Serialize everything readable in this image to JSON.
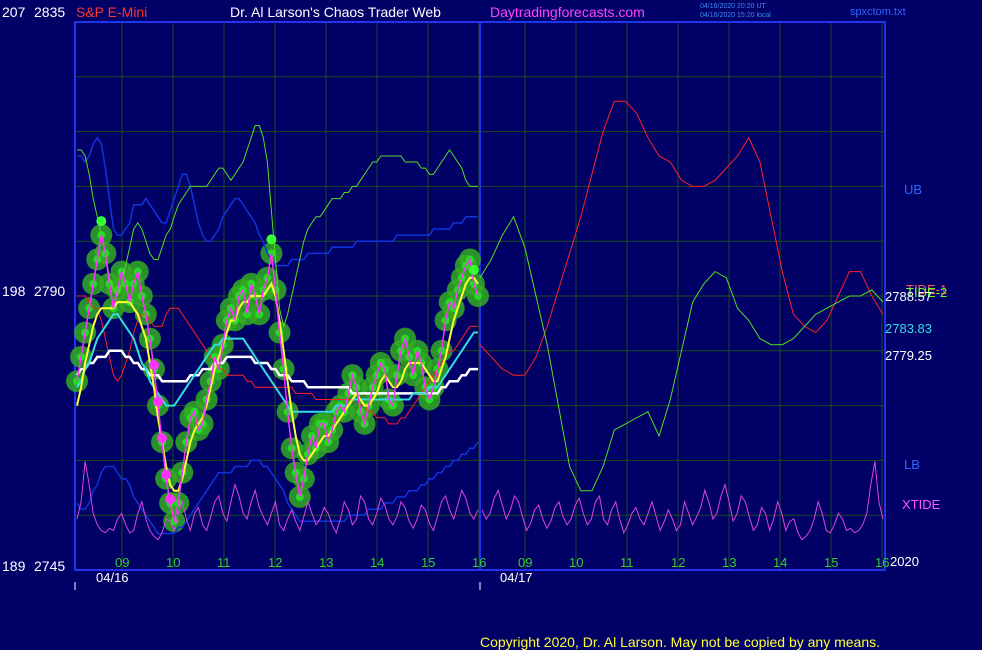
{
  "header": {
    "market": "S&P E-Mini",
    "title": "Dr. Al Larson's Chaos Trader Web",
    "site": "Daytradingforecasts.com",
    "stamp_utc": "04/16/2020 20:20 UT",
    "stamp_local": "04/16/2020 15:20 local",
    "file": "spxctom.txt",
    "footer": "Copyright 2020, Dr. Al Larson. May not be copied by any means."
  },
  "colors": {
    "background": "#000066",
    "frame": "#2233ee",
    "grid": "#1f4a1f",
    "price": "#ff33ff",
    "envelope": "#66ff33",
    "fast_ma": "#ffff33",
    "mid_ma": "#33dddd",
    "slow_ma": "#ffffff",
    "bands": "#1133dd",
    "tide2": "#ff2222",
    "tide1": "#55dd22",
    "xtide": "#dd44dd",
    "legend_ub": "#3366ff",
    "legend_tide": "#ff5555",
    "legend_xtide": "#ff55ff",
    "market_label": "#ff3333",
    "site_label": "#ff44ff"
  },
  "chart_data": {
    "type": "line",
    "y_axis": {
      "range": [
        2745,
        2835
      ],
      "ticks": [
        {
          "left": "207",
          "right": "2835",
          "value": 2835
        },
        {
          "left": "198",
          "right": "2790",
          "value": 2790
        },
        {
          "left": "189",
          "right": "2745",
          "value": 2745
        }
      ]
    },
    "x_axis": {
      "hour_ticks": [
        "09",
        "10",
        "11",
        "12",
        "13",
        "14",
        "15",
        "16",
        "09",
        "10",
        "11",
        "12",
        "13",
        "14",
        "15",
        "16"
      ],
      "date_labels": [
        "04/16",
        "04/17"
      ],
      "last_label": "2020",
      "grid": true
    },
    "price_labels": {
      "ma1": "2788.57",
      "ma2": "2783.83",
      "ma3": "2779.25"
    },
    "legend": {
      "ub": "UB",
      "tide2": "TIDE-2",
      "tide1": "TIDE-1",
      "lb": "LB",
      "xtide": "XTIDE"
    },
    "series": {
      "price": [
        2776,
        2780,
        2784,
        2788,
        2792,
        2796,
        2800,
        2797,
        2792,
        2788,
        2791,
        2794,
        2792,
        2789,
        2792,
        2794,
        2790,
        2787,
        2783,
        2778,
        2772,
        2766,
        2760,
        2756,
        2753,
        2756,
        2761,
        2766,
        2770,
        2771,
        2768,
        2769,
        2773,
        2776,
        2780,
        2778,
        2782,
        2786,
        2788,
        2786,
        2790,
        2791,
        2787,
        2792,
        2790,
        2787,
        2791,
        2793,
        2797,
        2791,
        2784,
        2778,
        2771,
        2765,
        2761,
        2757,
        2760,
        2764,
        2767,
        2765,
        2769,
        2769,
        2766,
        2768,
        2771,
        2772,
        2771,
        2774,
        2777,
        2775,
        2771,
        2769,
        2772,
        2775,
        2777,
        2779,
        2778,
        2773,
        2772,
        2777,
        2781,
        2783,
        2780,
        2777,
        2781,
        2779,
        2775,
        2773,
        2775,
        2778,
        2781,
        2786,
        2789,
        2788,
        2791,
        2793,
        2795,
        2796,
        2792,
        2790
      ],
      "fast_ma": [
        2772,
        2775,
        2779,
        2782,
        2785,
        2787,
        2788,
        2788,
        2788,
        2788,
        2789,
        2789,
        2789,
        2789,
        2788,
        2787,
        2785,
        2783,
        2779,
        2775,
        2770,
        2766,
        2762,
        2759,
        2758,
        2758,
        2760,
        2763,
        2766,
        2768,
        2769,
        2770,
        2772,
        2775,
        2778,
        2780,
        2782,
        2784,
        2786,
        2786,
        2788,
        2789,
        2789,
        2790,
        2790,
        2790,
        2790,
        2791,
        2792,
        2790,
        2786,
        2781,
        2776,
        2771,
        2767,
        2764,
        2763,
        2763,
        2764,
        2765,
        2766,
        2767,
        2767,
        2768,
        2769,
        2770,
        2771,
        2772,
        2773,
        2774,
        2773,
        2772,
        2772,
        2773,
        2774,
        2776,
        2777,
        2776,
        2775,
        2775,
        2776,
        2778,
        2779,
        2779,
        2779,
        2779,
        2778,
        2777,
        2776,
        2776,
        2778,
        2780,
        2783,
        2786,
        2788,
        2790,
        2792,
        2793,
        2793,
        2792
      ],
      "mid_ma": [
        2775,
        2776,
        2778,
        2779,
        2781,
        2783,
        2784,
        2785,
        2786,
        2787,
        2787,
        2786,
        2785,
        2784,
        2783,
        2781,
        2779,
        2778,
        2776,
        2775,
        2774,
        2773,
        2772,
        2772,
        2772,
        2773,
        2774,
        2775,
        2776,
        2777,
        2778,
        2779,
        2780,
        2781,
        2782,
        2782,
        2783,
        2783,
        2783,
        2783,
        2783,
        2783,
        2782,
        2781,
        2780,
        2779,
        2778,
        2777,
        2776,
        2775,
        2774,
        2773,
        2772,
        2771,
        2771,
        2771,
        2771,
        2771,
        2771,
        2771,
        2771,
        2771,
        2771,
        2771,
        2772,
        2772,
        2772,
        2772,
        2773,
        2773,
        2773,
        2773,
        2773,
        2773,
        2773,
        2773,
        2773,
        2773,
        2773,
        2773,
        2773,
        2773,
        2773,
        2774,
        2774,
        2774,
        2774,
        2775,
        2775,
        2775,
        2776,
        2777,
        2778,
        2779,
        2780,
        2781,
        2782,
        2783,
        2784,
        2784
      ],
      "slow_ma": [
        2777,
        2778,
        2778,
        2779,
        2779,
        2780,
        2780,
        2780,
        2781,
        2781,
        2781,
        2781,
        2780,
        2780,
        2779,
        2779,
        2778,
        2778,
        2777,
        2777,
        2777,
        2776,
        2776,
        2776,
        2776,
        2776,
        2776,
        2776,
        2777,
        2777,
        2777,
        2778,
        2778,
        2778,
        2779,
        2779,
        2779,
        2780,
        2780,
        2780,
        2780,
        2780,
        2780,
        2780,
        2779,
        2779,
        2779,
        2779,
        2778,
        2778,
        2777,
        2777,
        2777,
        2776,
        2776,
        2776,
        2776,
        2775,
        2775,
        2775,
        2775,
        2775,
        2775,
        2775,
        2775,
        2775,
        2775,
        2775,
        2774,
        2774,
        2774,
        2774,
        2774,
        2774,
        2774,
        2774,
        2774,
        2774,
        2774,
        2774,
        2774,
        2774,
        2774,
        2774,
        2774,
        2774,
        2774,
        2774,
        2774,
        2774,
        2775,
        2775,
        2776,
        2776,
        2776,
        2777,
        2777,
        2778,
        2778,
        2778
      ],
      "upper_band": [
        2813,
        2813,
        2812,
        2813,
        2815,
        2816,
        2815,
        2811,
        2806,
        2801,
        2800,
        2800,
        2801,
        2802,
        2805,
        2805,
        2805,
        2806,
        2805,
        2804,
        2803,
        2802,
        2802,
        2804,
        2806,
        2808,
        2810,
        2810,
        2808,
        2805,
        2802,
        2800,
        2799,
        2799,
        2800,
        2801,
        2803,
        2804,
        2805,
        2806,
        2806,
        2805,
        2804,
        2803,
        2802,
        2800,
        2799,
        2797,
        2796,
        2795,
        2795,
        2795,
        2795,
        2796,
        2796,
        2796,
        2796,
        2797,
        2797,
        2797,
        2797,
        2797,
        2797,
        2798,
        2798,
        2798,
        2798,
        2798,
        2798,
        2799,
        2799,
        2799,
        2799,
        2799,
        2799,
        2799,
        2799,
        2799,
        2799,
        2800,
        2800,
        2800,
        2800,
        2800,
        2800,
        2800,
        2800,
        2800,
        2801,
        2801,
        2801,
        2801,
        2801,
        2802,
        2802,
        2802,
        2803,
        2803,
        2803,
        2803
      ],
      "lower_band": [
        2756,
        2755,
        2755,
        2756,
        2758,
        2759,
        2761,
        2762,
        2762,
        2762,
        2761,
        2760,
        2760,
        2759,
        2757,
        2756,
        2755,
        2754,
        2753,
        2752,
        2751,
        2751,
        2751,
        2751,
        2751,
        2752,
        2752,
        2753,
        2754,
        2755,
        2756,
        2757,
        2758,
        2759,
        2760,
        2761,
        2761,
        2761,
        2761,
        2762,
        2762,
        2762,
        2762,
        2763,
        2763,
        2763,
        2762,
        2762,
        2761,
        2760,
        2759,
        2758,
        2756,
        2755,
        2754,
        2753,
        2753,
        2753,
        2753,
        2753,
        2753,
        2753,
        2753,
        2753,
        2753,
        2753,
        2753,
        2754,
        2754,
        2754,
        2754,
        2754,
        2755,
        2755,
        2755,
        2755,
        2756,
        2756,
        2756,
        2757,
        2757,
        2757,
        2758,
        2758,
        2758,
        2759,
        2759,
        2760,
        2760,
        2761,
        2761,
        2762,
        2762,
        2763,
        2763,
        2764,
        2764,
        2765,
        2765,
        2766
      ],
      "tide1": [
        2814,
        2814,
        2813,
        2810,
        2806,
        2803,
        2800,
        2797,
        2793,
        2791,
        2790,
        2792,
        2795,
        2798,
        2801,
        2802,
        2801,
        2799,
        2797,
        2796,
        2796,
        2798,
        2800,
        2801,
        2803,
        2805,
        2806,
        2807,
        2808,
        2808,
        2808,
        2808,
        2808,
        2809,
        2810,
        2811,
        2811,
        2810,
        2809,
        2810,
        2811,
        2812,
        2814,
        2816,
        2818,
        2818,
        2816,
        2812,
        2804,
        2796,
        2788,
        2785,
        2787,
        2790,
        2793,
        2796,
        2799,
        2801,
        2802,
        2803,
        2803,
        2804,
        2805,
        2806,
        2806,
        2806,
        2807,
        2807,
        2808,
        2808,
        2809,
        2810,
        2811,
        2812,
        2812,
        2813,
        2813,
        2813,
        2813,
        2813,
        2813,
        2812,
        2812,
        2812,
        2812,
        2811,
        2811,
        2810,
        2810,
        2811,
        2812,
        2813,
        2814,
        2813,
        2812,
        2811,
        2809,
        2808,
        2808,
        2808
      ],
      "tide2": [
        2790,
        2790,
        2790,
        2789,
        2788,
        2788,
        2786,
        2783,
        2780,
        2777,
        2776,
        2777,
        2779,
        2781,
        2784,
        2786,
        2787,
        2787,
        2786,
        2785,
        2785,
        2785,
        2787,
        2788,
        2788,
        2788,
        2787,
        2786,
        2785,
        2784,
        2783,
        2782,
        2781,
        2780,
        2779,
        2778,
        2778,
        2777,
        2777,
        2777,
        2777,
        2777,
        2776,
        2776,
        2775,
        2775,
        2775,
        2775,
        2775,
        2775,
        2775,
        2775,
        2775,
        2775,
        2774,
        2774,
        2774,
        2774,
        2774,
        2773,
        2773,
        2773,
        2773,
        2773,
        2773,
        2773,
        2773,
        2773,
        2773,
        2773,
        2772,
        2772,
        2771,
        2771,
        2770,
        2770,
        2770,
        2769,
        2769,
        2769,
        2770,
        2770,
        2771,
        2772,
        2773,
        2774,
        2775,
        2776,
        2777,
        2778,
        2779,
        2780,
        2781,
        2781,
        2782,
        2783,
        2784,
        2785,
        2785,
        2785
      ],
      "tide2_forecast": [
        2782,
        2780,
        2778,
        2777,
        2777,
        2780,
        2785,
        2791,
        2797,
        2803,
        2810,
        2817,
        2822,
        2822,
        2820,
        2816,
        2813,
        2812,
        2809,
        2808,
        2808,
        2809,
        2811,
        2813,
        2816,
        2812,
        2803,
        2794,
        2787,
        2785,
        2784,
        2786,
        2790,
        2794,
        2794,
        2790,
        2787
      ],
      "tide1_forecast": [
        2793,
        2796,
        2800,
        2803,
        2798,
        2790,
        2782,
        2772,
        2762,
        2758,
        2758,
        2762,
        2768,
        2769,
        2770,
        2771,
        2767,
        2773,
        2781,
        2789,
        2792,
        2794,
        2793,
        2788,
        2786,
        2783,
        2782,
        2782,
        2783,
        2785,
        2787,
        2788,
        2789,
        2790,
        2790,
        2791,
        2789
      ],
      "xtide": [
        40,
        55,
        90,
        70,
        45,
        35,
        30,
        28,
        32,
        30,
        40,
        45,
        35,
        28,
        30,
        45,
        55,
        40,
        30,
        25,
        22,
        28,
        40,
        38,
        30,
        45,
        55,
        40,
        30,
        45,
        50,
        35,
        30,
        42,
        55,
        60,
        45,
        38,
        55,
        70,
        60,
        45,
        40,
        55,
        65,
        50,
        42,
        35,
        45,
        55,
        35,
        30,
        40,
        48,
        38,
        30,
        42,
        55,
        45,
        35,
        40,
        50,
        45,
        35,
        28,
        40,
        55,
        48,
        35,
        40,
        60,
        55,
        40,
        35,
        45,
        58,
        52,
        40,
        35,
        42,
        55,
        50,
        38,
        32,
        40,
        52,
        48,
        36,
        30,
        42,
        55,
        60,
        48,
        40,
        52,
        65,
        58,
        45,
        40,
        48
      ]
    }
  }
}
